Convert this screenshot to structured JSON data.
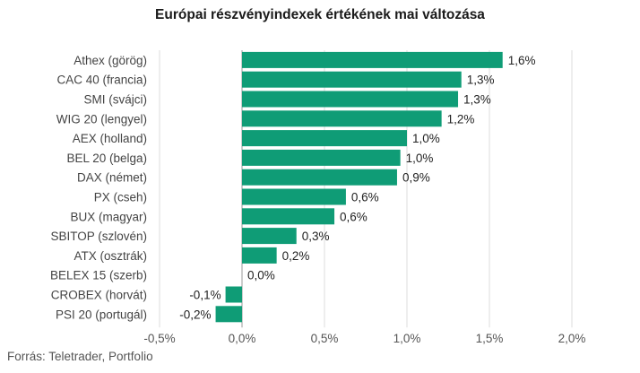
{
  "title": "Európai részvényindexek értékének mai változása",
  "source": "Forrás: Teletrader, Portfolio",
  "colors": {
    "bar": "#0f9c76",
    "grid": "#dddddd",
    "zero": "#9a9a9a"
  },
  "chart_data": {
    "type": "bar",
    "orientation": "horizontal",
    "categories": [
      "Athex (görög)",
      "CAC 40 (francia)",
      "SMI (svájci)",
      "WIG 20 (lengyel)",
      "AEX (holland)",
      "BEL 20 (belga)",
      "DAX (német)",
      "PX (cseh)",
      "BUX (magyar)",
      "SBITOP (szlovén)",
      "ATX (osztrák)",
      "BELEX 15 (szerb)",
      "CROBEX (horvát)",
      "PSI 20 (portugál)"
    ],
    "values": [
      1.58,
      1.33,
      1.31,
      1.21,
      1.0,
      0.96,
      0.94,
      0.63,
      0.56,
      0.33,
      0.21,
      0.0,
      -0.1,
      -0.16
    ],
    "value_labels": [
      "1,6%",
      "1,3%",
      "1,3%",
      "1,2%",
      "1,0%",
      "1,0%",
      "0,9%",
      "0,6%",
      "0,6%",
      "0,3%",
      "0,2%",
      "0,0%",
      "-0,1%",
      "-0,2%"
    ],
    "xticks": [
      -0.5,
      0,
      0.5,
      1.0,
      1.5,
      2.0
    ],
    "xtick_labels": [
      "-0,5%",
      "0,0%",
      "0,5%",
      "1,0%",
      "1,5%",
      "2,0%"
    ],
    "xlim": [
      -0.5,
      2.0
    ],
    "grid": true,
    "legend": "none"
  }
}
